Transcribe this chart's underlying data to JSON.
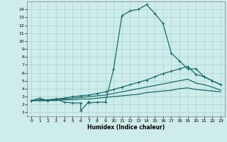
{
  "xlabel": "Humidex (Indice chaleur)",
  "xlim": [
    -0.5,
    23.5
  ],
  "ylim": [
    0.5,
    15
  ],
  "xticks": [
    0,
    1,
    2,
    3,
    4,
    5,
    6,
    7,
    8,
    9,
    10,
    11,
    12,
    13,
    14,
    15,
    16,
    17,
    18,
    19,
    20,
    21,
    22,
    23
  ],
  "yticks": [
    1,
    2,
    3,
    4,
    5,
    6,
    7,
    8,
    9,
    10,
    11,
    12,
    13,
    14
  ],
  "bg_color": "#cdecea",
  "grid_color": "#aed8d5",
  "line_color": "#1a6b6b",
  "series0": {
    "x": [
      0,
      1,
      2,
      3,
      4,
      5,
      6,
      6,
      7,
      7,
      8,
      9,
      10,
      11,
      12,
      13,
      14,
      15,
      16,
      17,
      18,
      19,
      20,
      21,
      22,
      23
    ],
    "y": [
      2.5,
      2.8,
      2.5,
      2.7,
      2.3,
      2.2,
      2.2,
      1.2,
      2.4,
      2.2,
      2.3,
      2.3,
      6.5,
      13.2,
      13.8,
      14.0,
      14.6,
      13.5,
      12.2,
      8.5,
      7.5,
      6.5,
      6.5,
      5.5,
      5.0,
      4.5
    ]
  },
  "series1": {
    "x": [
      0,
      1,
      2,
      3,
      4,
      5,
      6,
      7,
      8,
      9,
      10,
      11,
      12,
      13,
      14,
      15,
      16,
      17,
      18,
      19,
      20,
      21,
      22,
      23
    ],
    "y": [
      2.5,
      2.6,
      2.6,
      2.7,
      2.8,
      3.0,
      3.1,
      3.2,
      3.4,
      3.6,
      3.9,
      4.2,
      4.5,
      4.8,
      5.1,
      5.5,
      5.9,
      6.2,
      6.5,
      6.8,
      5.8,
      5.5,
      5.0,
      4.5
    ]
  },
  "series2": {
    "x": [
      0,
      1,
      2,
      3,
      4,
      5,
      6,
      7,
      8,
      9,
      10,
      11,
      12,
      13,
      14,
      15,
      16,
      17,
      18,
      19,
      20,
      21,
      22,
      23
    ],
    "y": [
      2.5,
      2.5,
      2.5,
      2.6,
      2.7,
      2.8,
      2.9,
      3.0,
      3.1,
      3.2,
      3.4,
      3.6,
      3.8,
      4.0,
      4.2,
      4.4,
      4.6,
      4.8,
      5.0,
      5.2,
      4.7,
      4.5,
      4.2,
      3.8
    ]
  },
  "series3": {
    "x": [
      0,
      1,
      2,
      3,
      4,
      5,
      6,
      7,
      8,
      9,
      10,
      11,
      12,
      13,
      14,
      15,
      16,
      17,
      18,
      19,
      20,
      21,
      22,
      23
    ],
    "y": [
      2.5,
      2.5,
      2.5,
      2.5,
      2.6,
      2.6,
      2.7,
      2.7,
      2.8,
      2.9,
      3.0,
      3.1,
      3.2,
      3.3,
      3.5,
      3.6,
      3.7,
      3.8,
      4.0,
      4.1,
      3.9,
      3.8,
      3.7,
      3.6
    ]
  }
}
